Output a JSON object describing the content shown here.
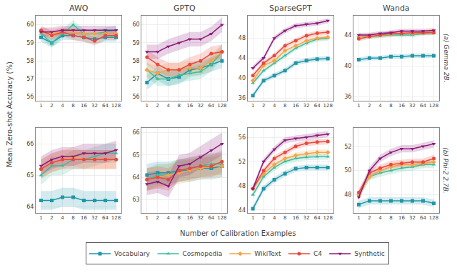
{
  "xlabel": "Number of Calibration Examples",
  "ylabel": "Mean Zero-shot Accuracy (%)",
  "legend": "bottom",
  "chart_data": [
    {
      "type": "line",
      "title": "AWQ",
      "grid": true,
      "categories": [
        "1",
        "2",
        "4",
        "8",
        "16",
        "32",
        "64",
        "128"
      ],
      "ylim": [
        55.8,
        60.5
      ],
      "yticks": [
        56,
        57,
        58,
        59,
        60
      ],
      "band": 0.25,
      "series": [
        {
          "name": "Vocabulary",
          "color": "#2196A8",
          "marker": "square",
          "values": [
            59.3,
            59.0,
            59.4,
            59.4,
            59.3,
            59.2,
            59.3,
            59.3
          ]
        },
        {
          "name": "Cosmopedia",
          "color": "#3DBCA0",
          "marker": "triangle-up",
          "values": [
            59.5,
            59.0,
            59.5,
            60.0,
            59.5,
            59.5,
            59.6,
            59.7
          ]
        },
        {
          "name": "WikiText",
          "color": "#F5A34A",
          "marker": "diamond",
          "values": [
            59.6,
            59.5,
            59.6,
            59.6,
            59.5,
            59.5,
            59.5,
            59.5
          ]
        },
        {
          "name": "C4",
          "color": "#E8483C",
          "marker": "circle",
          "values": [
            59.7,
            59.4,
            59.6,
            59.4,
            59.3,
            59.1,
            59.4,
            59.4
          ]
        },
        {
          "name": "Synthetic",
          "color": "#8B1A7A",
          "marker": "triangle-down",
          "values": [
            59.6,
            59.6,
            59.7,
            59.7,
            59.7,
            59.7,
            59.7,
            59.7
          ]
        }
      ]
    },
    {
      "type": "line",
      "title": "GPTQ",
      "grid": true,
      "categories": [
        "1",
        "2",
        "4",
        "8",
        "16",
        "32",
        "64",
        "128"
      ],
      "ylim": [
        55.8,
        60.5
      ],
      "yticks": [
        56,
        57,
        58,
        59,
        60
      ],
      "band": 0.4,
      "series": [
        {
          "name": "Vocabulary",
          "color": "#2196A8",
          "marker": "square",
          "values": [
            56.8,
            57.3,
            57.0,
            57.1,
            57.5,
            57.6,
            57.8,
            58.0
          ]
        },
        {
          "name": "Cosmopedia",
          "color": "#3DBCA0",
          "marker": "triangle-up",
          "values": [
            57.5,
            57.0,
            57.0,
            57.2,
            57.3,
            57.4,
            57.8,
            58.5
          ]
        },
        {
          "name": "WikiText",
          "color": "#F5A34A",
          "marker": "diamond",
          "values": [
            57.5,
            57.3,
            57.5,
            57.5,
            57.6,
            57.6,
            58.0,
            58.5
          ]
        },
        {
          "name": "C4",
          "color": "#E8483C",
          "marker": "circle",
          "values": [
            58.2,
            57.8,
            57.5,
            57.5,
            57.8,
            58.0,
            58.4,
            58.5
          ]
        },
        {
          "name": "Synthetic",
          "color": "#8B1A7A",
          "marker": "triangle-down",
          "values": [
            58.5,
            58.5,
            58.8,
            59.0,
            59.2,
            59.2,
            59.5,
            60.0
          ]
        }
      ]
    },
    {
      "type": "line",
      "title": "SparseGPT",
      "grid": true,
      "categories": [
        "1",
        "2",
        "4",
        "8",
        "16",
        "32",
        "64",
        "128"
      ],
      "ylim": [
        35.5,
        52.5
      ],
      "yticks": [
        36,
        40,
        44,
        48
      ],
      "band": 0.5,
      "series": [
        {
          "name": "Vocabulary",
          "color": "#2196A8",
          "marker": "square",
          "values": [
            36.5,
            39.5,
            40.5,
            41.5,
            43.0,
            43.5,
            43.8,
            43.9
          ]
        },
        {
          "name": "Cosmopedia",
          "color": "#3DBCA0",
          "marker": "triangle-up",
          "values": [
            39.0,
            41.5,
            43.0,
            44.5,
            46.0,
            47.0,
            47.8,
            48.0
          ]
        },
        {
          "name": "WikiText",
          "color": "#F5A34A",
          "marker": "diamond",
          "values": [
            39.5,
            42.5,
            43.5,
            45.5,
            46.5,
            47.5,
            48.0,
            48.2
          ]
        },
        {
          "name": "C4",
          "color": "#E8483C",
          "marker": "circle",
          "values": [
            40.5,
            43.0,
            44.5,
            46.5,
            47.5,
            48.5,
            49.0,
            49.2
          ]
        },
        {
          "name": "Synthetic",
          "color": "#8B1A7A",
          "marker": "triangle-down",
          "values": [
            42.0,
            44.0,
            48.0,
            49.5,
            50.5,
            50.8,
            51.0,
            51.5
          ]
        }
      ]
    },
    {
      "type": "line",
      "title": "Wanda",
      "annotation": "(a) Gemma 2B.",
      "grid": true,
      "categories": [
        "1",
        "2",
        "4",
        "8",
        "16",
        "32",
        "64",
        "128"
      ],
      "ylim": [
        35.5,
        46.5
      ],
      "yticks": [
        36,
        40,
        44
      ],
      "band": 0.3,
      "series": [
        {
          "name": "Vocabulary",
          "color": "#2196A8",
          "marker": "square",
          "values": [
            40.8,
            41.0,
            41.0,
            41.2,
            41.2,
            41.3,
            41.3,
            41.3
          ]
        },
        {
          "name": "Cosmopedia",
          "color": "#3DBCA0",
          "marker": "triangle-up",
          "values": [
            43.8,
            43.8,
            43.9,
            44.0,
            44.0,
            44.0,
            44.2,
            44.3
          ]
        },
        {
          "name": "WikiText",
          "color": "#F5A34A",
          "marker": "diamond",
          "values": [
            43.8,
            43.9,
            44.0,
            44.1,
            44.2,
            44.2,
            44.3,
            44.5
          ]
        },
        {
          "name": "C4",
          "color": "#E8483C",
          "marker": "circle",
          "values": [
            43.5,
            43.8,
            44.0,
            44.2,
            44.2,
            44.3,
            44.3,
            44.3
          ]
        },
        {
          "name": "Synthetic",
          "color": "#8B1A7A",
          "marker": "triangle-down",
          "values": [
            44.0,
            44.0,
            44.2,
            44.3,
            44.5,
            44.5,
            44.5,
            44.6
          ]
        }
      ]
    },
    {
      "type": "line",
      "grid": true,
      "categories": [
        "1",
        "2",
        "4",
        "8",
        "16",
        "32",
        "64",
        "128"
      ],
      "ylim": [
        63.8,
        66.5
      ],
      "yticks": [
        64,
        65,
        66
      ],
      "band": 0.3,
      "series": [
        {
          "name": "Vocabulary",
          "color": "#2196A8",
          "marker": "square",
          "values": [
            64.2,
            64.2,
            64.3,
            64.3,
            64.2,
            64.2,
            64.2,
            64.2
          ]
        },
        {
          "name": "Cosmopedia",
          "color": "#3DBCA0",
          "marker": "triangle-up",
          "values": [
            65.0,
            65.3,
            65.3,
            65.5,
            65.5,
            65.6,
            65.7,
            65.7
          ]
        },
        {
          "name": "WikiText",
          "color": "#F5A34A",
          "marker": "diamond",
          "values": [
            65.2,
            65.4,
            65.5,
            65.6,
            65.5,
            65.5,
            65.5,
            65.5
          ]
        },
        {
          "name": "C4",
          "color": "#E8483C",
          "marker": "circle",
          "values": [
            65.2,
            65.4,
            65.5,
            65.5,
            65.5,
            65.5,
            65.5,
            65.5
          ]
        },
        {
          "name": "Synthetic",
          "color": "#8B1A7A",
          "marker": "triangle-down",
          "values": [
            65.3,
            65.5,
            65.6,
            65.6,
            65.7,
            65.7,
            65.7,
            65.8
          ]
        }
      ]
    },
    {
      "type": "line",
      "grid": true,
      "categories": [
        "1",
        "2",
        "4",
        "8",
        "16",
        "32",
        "64",
        "128"
      ],
      "ylim": [
        62.4,
        66.2
      ],
      "yticks": [
        63,
        64,
        65,
        66
      ],
      "band": 0.5,
      "series": [
        {
          "name": "Vocabulary",
          "color": "#2196A8",
          "marker": "square",
          "values": [
            64.1,
            64.2,
            64.2,
            64.3,
            64.3,
            64.4,
            64.4,
            64.5
          ]
        },
        {
          "name": "Cosmopedia",
          "color": "#3DBCA0",
          "marker": "triangle-up",
          "values": [
            63.9,
            64.1,
            64.1,
            64.3,
            64.4,
            64.5,
            64.6,
            64.6
          ]
        },
        {
          "name": "WikiText",
          "color": "#F5A34A",
          "marker": "diamond",
          "values": [
            63.9,
            64.0,
            64.1,
            64.2,
            64.3,
            64.4,
            64.5,
            64.5
          ]
        },
        {
          "name": "C4",
          "color": "#E8483C",
          "marker": "circle",
          "values": [
            63.9,
            64.0,
            63.9,
            64.3,
            64.4,
            64.5,
            64.5,
            64.7
          ]
        },
        {
          "name": "Synthetic",
          "color": "#8B1A7A",
          "marker": "triangle-down",
          "values": [
            63.7,
            63.8,
            63.6,
            64.5,
            64.6,
            64.9,
            65.2,
            65.5
          ]
        }
      ]
    },
    {
      "type": "line",
      "grid": true,
      "categories": [
        "1",
        "2",
        "4",
        "8",
        "16",
        "32",
        "64",
        "128"
      ],
      "ylim": [
        43.5,
        57.5
      ],
      "yticks": [
        44,
        48,
        52,
        56
      ],
      "band": 0.5,
      "series": [
        {
          "name": "Vocabulary",
          "color": "#2196A8",
          "marker": "square",
          "values": [
            44.2,
            47.5,
            49.0,
            50.0,
            50.8,
            51.0,
            51.0,
            51.0
          ]
        },
        {
          "name": "Cosmopedia",
          "color": "#3DBCA0",
          "marker": "triangle-up",
          "values": [
            46.5,
            49.5,
            51.0,
            52.0,
            52.5,
            52.7,
            52.8,
            52.8
          ]
        },
        {
          "name": "WikiText",
          "color": "#F5A34A",
          "marker": "diamond",
          "values": [
            47.5,
            50.0,
            51.5,
            52.5,
            53.0,
            53.3,
            53.5,
            53.5
          ]
        },
        {
          "name": "C4",
          "color": "#E8483C",
          "marker": "circle",
          "values": [
            47.5,
            50.5,
            52.5,
            53.5,
            54.5,
            55.0,
            55.2,
            55.3
          ]
        },
        {
          "name": "Synthetic",
          "color": "#8B1A7A",
          "marker": "triangle-down",
          "values": [
            47.5,
            52.0,
            54.0,
            55.5,
            55.8,
            56.0,
            56.3,
            56.5
          ]
        }
      ]
    },
    {
      "type": "line",
      "annotation": "(b) Phi-2 2.7B.",
      "grid": true,
      "categories": [
        "1",
        "2",
        "4",
        "8",
        "16",
        "32",
        "64",
        "128"
      ],
      "ylim": [
        46.5,
        53.5
      ],
      "yticks": [
        48,
        50,
        52
      ],
      "band": 0.3,
      "series": [
        {
          "name": "Vocabulary",
          "color": "#2196A8",
          "marker": "square",
          "values": [
            47.2,
            47.5,
            47.5,
            47.5,
            47.5,
            47.5,
            47.5,
            47.3
          ]
        },
        {
          "name": "Cosmopedia",
          "color": "#3DBCA0",
          "marker": "triangle-up",
          "values": [
            48.0,
            49.5,
            49.8,
            50.0,
            50.2,
            50.3,
            50.5,
            50.5
          ]
        },
        {
          "name": "WikiText",
          "color": "#F5A34A",
          "marker": "diamond",
          "values": [
            48.0,
            49.5,
            50.0,
            50.3,
            50.5,
            50.5,
            50.6,
            50.7
          ]
        },
        {
          "name": "C4",
          "color": "#E8483C",
          "marker": "circle",
          "values": [
            48.2,
            49.8,
            50.2,
            50.5,
            50.6,
            50.7,
            50.7,
            51.0
          ]
        },
        {
          "name": "Synthetic",
          "color": "#8B1A7A",
          "marker": "triangle-down",
          "values": [
            47.8,
            50.0,
            51.0,
            51.5,
            51.8,
            51.8,
            52.0,
            52.2
          ]
        }
      ]
    }
  ]
}
